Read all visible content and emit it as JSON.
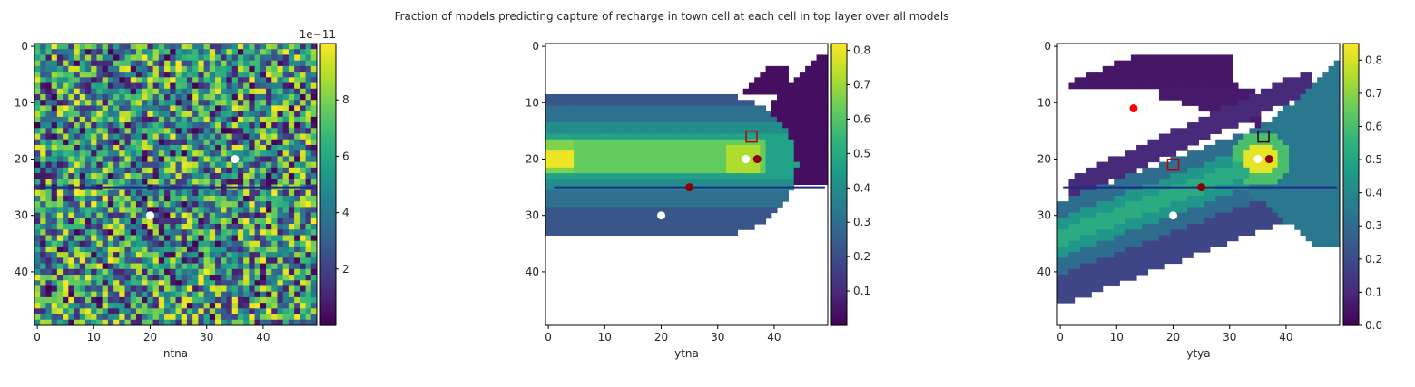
{
  "figure": {
    "suptitle": "Fraction of models predicting capture of recharge in town cell at each cell in top layer over all models"
  },
  "colors": {
    "viridis": [
      "#440154",
      "#482878",
      "#3e4989",
      "#31688e",
      "#26828e",
      "#1f9e89",
      "#35b779",
      "#6ece58",
      "#b5de2b",
      "#fde725"
    ],
    "well_point": "#8b0000",
    "red_point": "#ff0000",
    "white_point": "#ffffff",
    "boundary_line": "#1f2a8a",
    "red_square": "#c00000",
    "dark_square": "#3a0000"
  },
  "chart_data": [
    {
      "type": "heatmap",
      "name": "ntna",
      "xlabel": "ntna",
      "ylabel": "",
      "grid_shape": [
        50,
        50
      ],
      "pattern": "random noise, uniform values between 0 and 1e-11",
      "xticks": [
        "0",
        "10",
        "20",
        "30",
        "40"
      ],
      "yticks": [
        "0",
        "10",
        "20",
        "30",
        "40"
      ],
      "colorbar": {
        "min": 0,
        "max": 1e-11,
        "ticks": [
          "2",
          "4",
          "6",
          "8"
        ],
        "tick_values": [
          2e-12,
          4e-12,
          6e-12,
          8e-12
        ],
        "offset_label": "1e−11"
      },
      "horizontal_line": {
        "y": 25.5,
        "x": [
          0,
          49
        ]
      },
      "points": [
        {
          "x": 35,
          "y": 20,
          "color": "white"
        },
        {
          "x": 20,
          "y": 30,
          "color": "white"
        }
      ],
      "squares": []
    },
    {
      "type": "heatmap",
      "name": "ytna",
      "xlabel": "ytna",
      "ylabel": "",
      "grid_shape": [
        50,
        50
      ],
      "pattern": "capture zone plume extending from well to the left; highest values along rows 17-22",
      "xticks": [
        "0",
        "10",
        "20",
        "30",
        "40"
      ],
      "yticks": [
        "0",
        "10",
        "20",
        "30",
        "40"
      ],
      "colorbar": {
        "min": 0.0,
        "max": 0.82,
        "ticks": [
          "0.1",
          "0.2",
          "0.3",
          "0.4",
          "0.5",
          "0.6",
          "0.7",
          "0.8"
        ]
      },
      "horizontal_line": {
        "y": 25.5,
        "x": [
          1,
          49
        ]
      },
      "points": [
        {
          "x": 35,
          "y": 20,
          "color": "white"
        },
        {
          "x": 37,
          "y": 20,
          "color": "darkred"
        },
        {
          "x": 25,
          "y": 25,
          "color": "darkred"
        },
        {
          "x": 20,
          "y": 30,
          "color": "white"
        }
      ],
      "squares": [
        {
          "x": 36,
          "y": 16,
          "color": "red"
        }
      ]
    },
    {
      "type": "heatmap",
      "name": "ytya",
      "xlabel": "ytya",
      "ylabel": "",
      "grid_shape": [
        50,
        50
      ],
      "pattern": "diagonal capture plume from lower-left toward the well; additional arc in the upper left",
      "xticks": [
        "0",
        "10",
        "20",
        "30",
        "40"
      ],
      "yticks": [
        "0",
        "10",
        "20",
        "30",
        "40"
      ],
      "colorbar": {
        "min": 0.0,
        "max": 0.85,
        "ticks": [
          "0.0",
          "0.1",
          "0.2",
          "0.3",
          "0.4",
          "0.5",
          "0.6",
          "0.7",
          "0.8"
        ]
      },
      "horizontal_line": {
        "y": 25.5,
        "x": [
          0.5,
          49
        ]
      },
      "points": [
        {
          "x": 13,
          "y": 11,
          "color": "red"
        },
        {
          "x": 35,
          "y": 20,
          "color": "white"
        },
        {
          "x": 37,
          "y": 20,
          "color": "darkred"
        },
        {
          "x": 25,
          "y": 25,
          "color": "darkred"
        },
        {
          "x": 20,
          "y": 30,
          "color": "white"
        }
      ],
      "squares": [
        {
          "x": 36,
          "y": 16,
          "color": "dark"
        },
        {
          "x": 20,
          "y": 21,
          "color": "red"
        }
      ]
    }
  ]
}
